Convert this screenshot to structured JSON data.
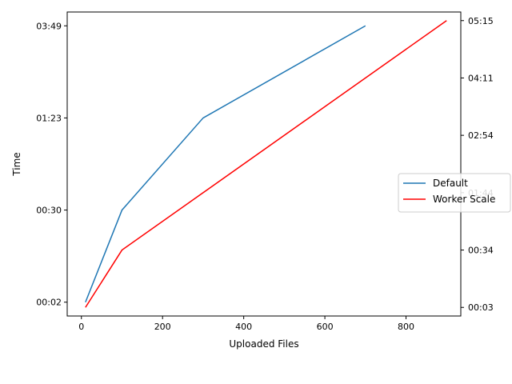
{
  "chart_data": {
    "type": "line",
    "title": "",
    "xlabel": "Uploaded Files",
    "ylabel": "Time",
    "xlim": [
      -35,
      935
    ],
    "x_ticks": [
      0,
      200,
      400,
      600,
      800
    ],
    "left_axis": {
      "tick_labels": [
        "00:02",
        "00:30",
        "01:23",
        "03:49"
      ],
      "tick_levels": [
        0,
        1,
        2,
        3
      ],
      "ylim": [
        -0.15,
        3.15
      ]
    },
    "right_axis": {
      "tick_labels": [
        "00:03",
        "00:34",
        "01:44",
        "02:54",
        "04:11",
        "05:15"
      ],
      "tick_levels": [
        0,
        1,
        2,
        3,
        4,
        5
      ],
      "ylim": [
        -0.15,
        5.15
      ]
    },
    "series": [
      {
        "name": "Default",
        "color": "#1f77b4",
        "axis": "left",
        "x": [
          10,
          100,
          300,
          700
        ],
        "y": [
          "00:02",
          "00:30",
          "01:23",
          "03:49"
        ]
      },
      {
        "name": "Worker Scale",
        "color": "#ff0000",
        "axis": "right",
        "x": [
          10,
          100,
          900
        ],
        "y": [
          "00:03",
          "00:34",
          "05:15"
        ]
      }
    ],
    "legend_position": "center-right",
    "grid": false
  }
}
